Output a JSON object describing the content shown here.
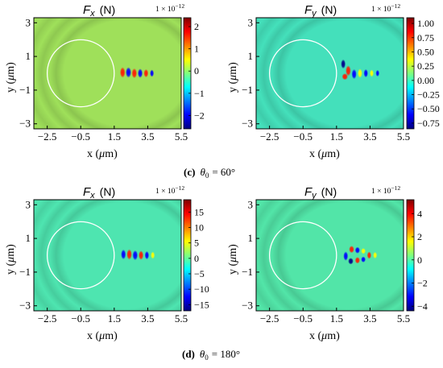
{
  "panels": [
    {
      "title_symbol": "F",
      "title_sub": "x",
      "title_unit": "(N)",
      "scale": "1 × 10",
      "scale_exp": "−12",
      "colorbar_ticks": [
        "2",
        "1",
        "0",
        "−1",
        "−2"
      ],
      "colorbar_values": [
        2,
        1,
        0,
        -1,
        -2
      ],
      "colorbar_range": [
        -2.6,
        2.4
      ],
      "background": "#9fe05a",
      "pattern": "fx-60"
    },
    {
      "title_symbol": "F",
      "title_sub": "y",
      "title_unit": "(N)",
      "scale": "1 × 10",
      "scale_exp": "−12",
      "colorbar_ticks": [
        "1.00",
        "0.75",
        "0.50",
        "0.25",
        "0.00",
        "−0.25",
        "−0.50",
        "−0.75"
      ],
      "colorbar_values": [
        1.0,
        0.75,
        0.5,
        0.25,
        0.0,
        -0.25,
        -0.5,
        -0.75
      ],
      "colorbar_range": [
        -0.85,
        1.1
      ],
      "background": "#44e0bb",
      "pattern": "fy-60"
    },
    {
      "title_symbol": "F",
      "title_sub": "x",
      "title_unit": "(N)",
      "scale": "1 × 10",
      "scale_exp": "−12",
      "colorbar_ticks": [
        "15",
        "10",
        "5",
        "0",
        "−5",
        "−10",
        "−15"
      ],
      "colorbar_values": [
        15,
        10,
        5,
        0,
        -5,
        -10,
        -15
      ],
      "colorbar_range": [
        -17,
        19
      ],
      "background": "#4ee5b0",
      "pattern": "fx-180"
    },
    {
      "title_symbol": "F",
      "title_sub": "y",
      "title_unit": "(N)",
      "scale": "1 × 10",
      "scale_exp": "−12",
      "colorbar_ticks": [
        "4",
        "2",
        "0",
        "−2",
        "−4"
      ],
      "colorbar_values": [
        4,
        2,
        0,
        -2,
        -4
      ],
      "colorbar_range": [
        -4.4,
        5.2
      ],
      "background": "#52e5a8",
      "pattern": "fy-180"
    }
  ],
  "axes": {
    "x_ticks": [
      "−2.5",
      "−0.5",
      "1.5",
      "3.5",
      "5.5"
    ],
    "x_values": [
      -2.5,
      -0.5,
      1.5,
      3.5,
      5.5
    ],
    "x_range": [
      -3.3,
      5.5
    ],
    "y_ticks": [
      "3",
      "1",
      "−1",
      "−3"
    ],
    "y_values": [
      3,
      1,
      -1,
      -3
    ],
    "y_range": [
      -3.3,
      3.3
    ],
    "xlabel_prefix": "x (",
    "xlabel_mu": "μ",
    "xlabel_suffix": "m)",
    "ylabel_prefix": "y (",
    "ylabel_mu": "μ",
    "ylabel_suffix": "m)"
  },
  "sphere": {
    "cx": -0.5,
    "cy": 0,
    "r": 2.0,
    "color": "#ffffff"
  },
  "captions": [
    {
      "letter": "(c)",
      "theta": "θ",
      "sub": "0",
      "value": "= 60°"
    },
    {
      "letter": "(d)",
      "theta": "θ",
      "sub": "0",
      "value": "= 180°"
    }
  ],
  "colormap": [
    "#00007f",
    "#0000ff",
    "#007fff",
    "#00ffff",
    "#7fff7f",
    "#ffff00",
    "#ff7f00",
    "#ff0000",
    "#7f0000"
  ]
}
